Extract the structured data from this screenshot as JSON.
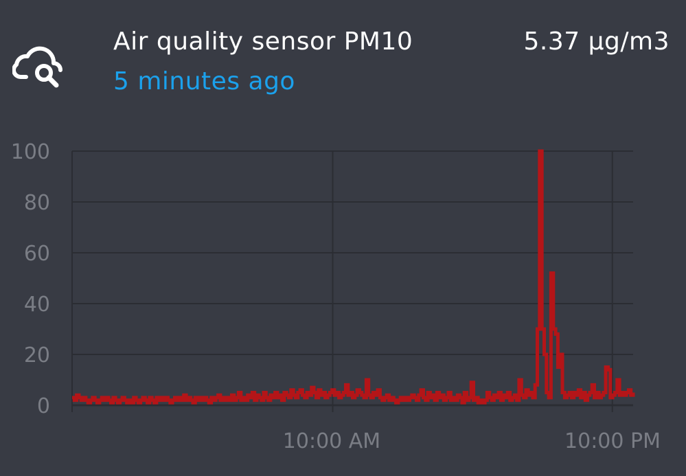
{
  "header": {
    "icon": "cloud-search-icon",
    "title": "Air quality sensor PM10",
    "value": "5.37 µg/m3",
    "last_changed": "5 minutes ago"
  },
  "colors": {
    "background": "#383b44",
    "title": "#ffffff",
    "accent": "#1ba1ec",
    "line": "#b41518",
    "grid": "#2b2d33",
    "tick_label": "#7a7d85"
  },
  "chart_data": {
    "type": "line",
    "title": "",
    "xlabel": "",
    "ylabel": "",
    "ylim": [
      0,
      100
    ],
    "yticks": [
      "0",
      "20",
      "40",
      "60",
      "80",
      "100"
    ],
    "xticks": [
      "10:00 AM",
      "10:00 PM"
    ],
    "grid": true,
    "legend": "none",
    "series": [
      {
        "values": [
          3,
          2,
          4,
          3,
          2,
          3,
          2,
          1,
          2,
          3,
          2,
          1,
          2,
          3,
          2,
          3,
          2,
          1,
          3,
          2,
          1,
          2,
          3,
          2,
          1,
          2,
          1,
          3,
          2,
          1,
          2,
          3,
          2,
          1,
          3,
          2,
          1,
          3,
          2,
          3,
          2,
          3,
          2,
          1,
          2,
          3,
          2,
          3,
          2,
          4,
          2,
          3,
          2,
          1,
          3,
          2,
          3,
          2,
          3,
          2,
          1,
          3,
          2,
          3,
          4,
          2,
          3,
          2,
          3,
          2,
          4,
          2,
          3,
          5,
          2,
          3,
          2,
          4,
          3,
          5,
          2,
          4,
          3,
          2,
          5,
          3,
          2,
          4,
          3,
          5,
          3,
          4,
          2,
          5,
          4,
          3,
          6,
          4,
          3,
          5,
          6,
          4,
          3,
          5,
          4,
          7,
          5,
          3,
          6,
          4,
          5,
          3,
          4,
          5,
          6,
          4,
          5,
          3,
          4,
          5,
          8,
          4,
          5,
          3,
          4,
          6,
          5,
          4,
          3,
          10,
          4,
          3,
          5,
          4,
          6,
          3,
          2,
          3,
          4,
          2,
          3,
          2,
          1,
          2,
          3,
          2,
          3,
          2,
          3,
          4,
          3,
          2,
          4,
          6,
          3,
          2,
          5,
          3,
          4,
          2,
          5,
          3,
          4,
          2,
          3,
          5,
          2,
          3,
          2,
          4,
          3,
          1,
          5,
          2,
          3,
          9,
          2,
          3,
          1,
          2,
          1,
          2,
          5,
          3,
          2,
          4,
          3,
          5,
          2,
          4,
          3,
          5,
          2,
          3,
          4,
          2,
          10,
          4,
          3,
          6,
          4,
          5,
          3,
          8,
          30,
          100,
          30,
          20,
          5,
          3,
          52,
          30,
          28,
          15,
          20,
          5,
          3,
          4,
          5,
          3,
          5,
          4,
          6,
          3,
          5,
          2,
          4,
          5,
          8,
          3,
          5,
          3,
          4,
          5,
          15,
          14,
          3,
          4,
          5,
          10,
          4,
          5,
          4,
          5,
          6,
          4,
          5
        ]
      }
    ]
  }
}
